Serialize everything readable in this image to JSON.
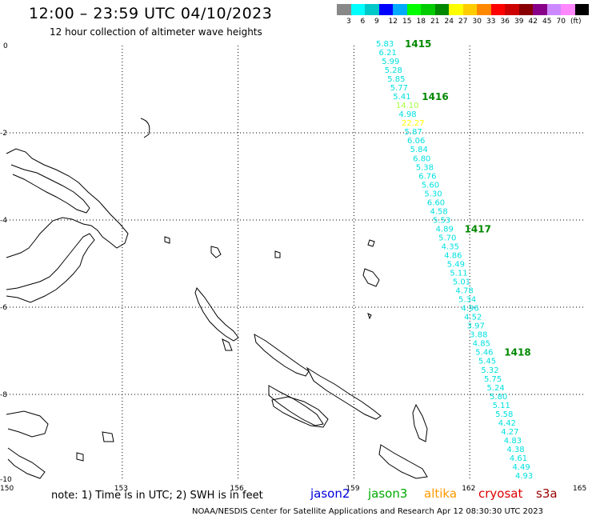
{
  "header": {
    "title": "12:00 – 23:59 UTC 04/10/2023",
    "subtitle": "12 hour collection of altimeter wave heights"
  },
  "legend": {
    "colors": [
      "#888888",
      "#00ffff",
      "#00c8c8",
      "#0000ff",
      "#00aaff",
      "#00ff00",
      "#00cc00",
      "#008800",
      "#ffff00",
      "#ffcc00",
      "#ff8800",
      "#ff0000",
      "#cc0000",
      "#880000",
      "#880088",
      "#cc88ff",
      "#ff88ff",
      "#000000"
    ],
    "labels": [
      "3",
      "6",
      "9",
      "12",
      "15",
      "18",
      "21",
      "24",
      "27",
      "30",
      "33",
      "36",
      "39",
      "42",
      "45",
      "70",
      "(ft)"
    ]
  },
  "axes": {
    "x_ticks": [
      "150",
      "153",
      "156",
      "159",
      "162",
      "165"
    ],
    "y_ticks": [
      "0",
      "-2",
      "-4",
      "-6",
      "-8",
      "-10"
    ]
  },
  "track": {
    "color": "#00e0e0",
    "values": [
      "5.83",
      "6.21",
      "5.99",
      "5.28",
      "5.85",
      "5.77",
      "5.41",
      "14.10",
      "4.98",
      "22.27",
      "5.87",
      "6.06",
      "5.84",
      "6.80",
      "5.38",
      "6.76",
      "5.60",
      "5.30",
      "6.60",
      "4.58",
      "5.53",
      "4.89",
      "5.70",
      "4.35",
      "4.86",
      "5.49",
      "5.11",
      "5.01",
      "4.78",
      "5.34",
      "4.96",
      "4.52",
      "3.97",
      "3.88",
      "4.85",
      "5.46",
      "5.45",
      "5.32",
      "5.75",
      "5.24",
      "5.80",
      "5.11",
      "5.58",
      "4.42",
      "4.27",
      "4.83",
      "4.38",
      "4.61",
      "4.49",
      "4.93"
    ],
    "special_colors": {
      "14.10": "#aaff44",
      "22.27": "#ffff00"
    },
    "orbit_labels": [
      {
        "text": "1415",
        "at_index": 0
      },
      {
        "text": "1416",
        "at_index": 6
      },
      {
        "text": "1417",
        "at_index": 21
      },
      {
        "text": "1418",
        "at_index": 35
      }
    ],
    "orbit_color": "#008800"
  },
  "footer": {
    "note": "note:  1) Time is in UTC; 2) SWH is in feet",
    "satellites": [
      {
        "name": "jason2",
        "color": "#0000dd"
      },
      {
        "name": "jason3",
        "color": "#00aa00"
      },
      {
        "name": "altika",
        "color": "#ff9900"
      },
      {
        "name": "cryosat",
        "color": "#dd0000"
      },
      {
        "name": "s3a",
        "color": "#990000"
      }
    ],
    "credit": "NOAA/NESDIS Center for Satellite Applications and Research     Apr 12 08:30:30 UTC 2023"
  }
}
